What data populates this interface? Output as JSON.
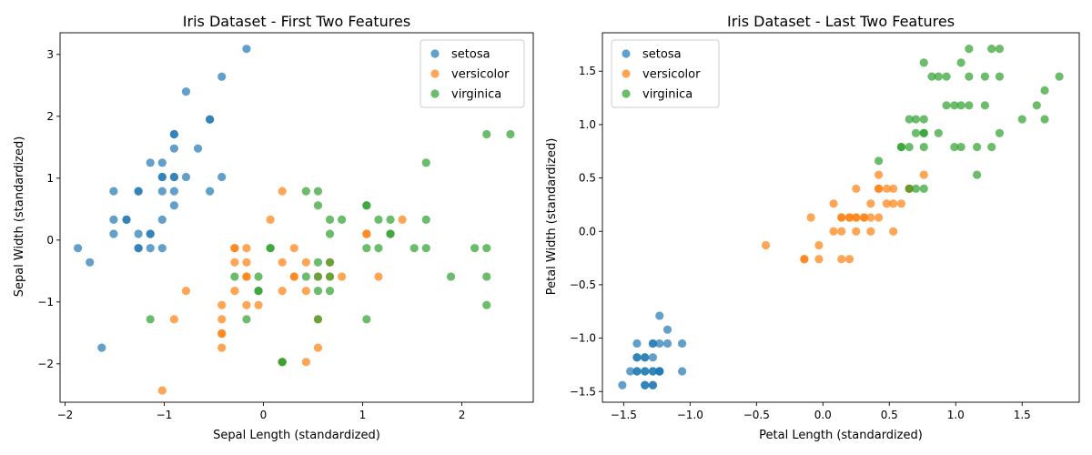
{
  "chart_data": [
    {
      "type": "scatter",
      "title": "Iris Dataset - First Two Features",
      "xlabel": "Sepal Length (standardized)",
      "ylabel": "Sepal Width (standardized)",
      "xlim": [
        -2.05,
        2.72
      ],
      "ylim": [
        -2.62,
        3.35
      ],
      "xticks": [
        -2,
        -1,
        0,
        1,
        2
      ],
      "xtick_labels": [
        "−2",
        "−1",
        "0",
        "1",
        "2"
      ],
      "yticks": [
        -2,
        -1,
        0,
        1,
        2,
        3
      ],
      "ytick_labels": [
        "−2",
        "−1",
        "0",
        "1",
        "2",
        "3"
      ],
      "grid": false,
      "legend_position": "top-right",
      "series": [
        {
          "name": "setosa",
          "color": "#1f77b4",
          "points": [
            [
              -0.17,
              3.09
            ],
            [
              -0.42,
              2.64
            ],
            [
              -0.78,
              2.4
            ],
            [
              -0.54,
              1.95
            ],
            [
              -0.54,
              1.95
            ],
            [
              -0.9,
              1.71
            ],
            [
              -0.9,
              1.71
            ],
            [
              -0.9,
              1.48
            ],
            [
              -0.66,
              1.48
            ],
            [
              -1.14,
              1.25
            ],
            [
              -1.02,
              1.25
            ],
            [
              -1.02,
              1.02
            ],
            [
              -1.02,
              1.02
            ],
            [
              -0.9,
              1.02
            ],
            [
              -0.9,
              1.02
            ],
            [
              -0.78,
              1.02
            ],
            [
              -0.42,
              1.02
            ],
            [
              -1.51,
              0.79
            ],
            [
              -1.26,
              0.79
            ],
            [
              -1.26,
              0.79
            ],
            [
              -1.02,
              0.79
            ],
            [
              -0.9,
              0.79
            ],
            [
              -0.54,
              0.79
            ],
            [
              -0.9,
              0.56
            ],
            [
              -1.51,
              0.33
            ],
            [
              -1.38,
              0.33
            ],
            [
              -1.38,
              0.33
            ],
            [
              -1.02,
              0.33
            ],
            [
              -1.51,
              0.1
            ],
            [
              -1.26,
              0.1
            ],
            [
              -1.14,
              0.1
            ],
            [
              -1.14,
              0.1
            ],
            [
              -1.87,
              -0.13
            ],
            [
              -1.26,
              -0.13
            ],
            [
              -1.26,
              -0.13
            ],
            [
              -1.14,
              -0.13
            ],
            [
              -1.02,
              -0.13
            ],
            [
              -1.75,
              -0.36
            ],
            [
              -1.63,
              -1.74
            ]
          ]
        },
        {
          "name": "versicolor",
          "color": "#ff7f0e",
          "points": [
            [
              0.19,
              0.79
            ],
            [
              0.07,
              0.33
            ],
            [
              1.4,
              0.33
            ],
            [
              1.04,
              0.1
            ],
            [
              1.04,
              0.1
            ],
            [
              -0.29,
              -0.13
            ],
            [
              -0.29,
              -0.13
            ],
            [
              -0.17,
              -0.13
            ],
            [
              0.31,
              -0.13
            ],
            [
              -0.29,
              -0.36
            ],
            [
              -0.17,
              -0.36
            ],
            [
              0.19,
              -0.36
            ],
            [
              0.43,
              -0.36
            ],
            [
              0.67,
              -0.36
            ],
            [
              -0.17,
              -0.59
            ],
            [
              -0.17,
              -0.59
            ],
            [
              0.31,
              -0.59
            ],
            [
              0.31,
              -0.59
            ],
            [
              0.55,
              -0.59
            ],
            [
              0.67,
              -0.59
            ],
            [
              0.79,
              -0.59
            ],
            [
              1.16,
              -0.59
            ],
            [
              -0.29,
              -0.82
            ],
            [
              -0.78,
              -0.82
            ],
            [
              0.19,
              -0.82
            ],
            [
              0.43,
              -0.82
            ],
            [
              -0.42,
              -1.05
            ],
            [
              -0.17,
              -1.05
            ],
            [
              -0.05,
              -1.05
            ],
            [
              -0.42,
              -1.28
            ],
            [
              -0.9,
              -1.28
            ],
            [
              0.55,
              -1.28
            ],
            [
              -0.42,
              -1.51
            ],
            [
              -0.42,
              -1.51
            ],
            [
              -0.42,
              -1.74
            ],
            [
              0.55,
              -1.74
            ],
            [
              0.19,
              -1.97
            ],
            [
              0.43,
              -1.97
            ],
            [
              -1.02,
              -2.43
            ]
          ]
        },
        {
          "name": "virginica",
          "color": "#2ca02c",
          "points": [
            [
              2.25,
              1.71
            ],
            [
              2.49,
              1.71
            ],
            [
              1.64,
              1.25
            ],
            [
              0.43,
              0.79
            ],
            [
              0.55,
              0.79
            ],
            [
              0.55,
              0.56
            ],
            [
              1.04,
              0.56
            ],
            [
              1.04,
              0.56
            ],
            [
              0.67,
              0.33
            ],
            [
              0.79,
              0.33
            ],
            [
              1.16,
              0.33
            ],
            [
              1.28,
              0.33
            ],
            [
              1.64,
              0.33
            ],
            [
              0.67,
              0.1
            ],
            [
              1.28,
              0.1
            ],
            [
              1.28,
              0.1
            ],
            [
              0.07,
              -0.13
            ],
            [
              0.07,
              -0.13
            ],
            [
              1.04,
              -0.13
            ],
            [
              1.16,
              -0.13
            ],
            [
              1.52,
              -0.13
            ],
            [
              1.64,
              -0.13
            ],
            [
              2.13,
              -0.13
            ],
            [
              2.25,
              -0.13
            ],
            [
              0.55,
              -0.36
            ],
            [
              0.67,
              -0.36
            ],
            [
              -0.29,
              -0.59
            ],
            [
              -0.05,
              -0.59
            ],
            [
              0.43,
              -0.59
            ],
            [
              0.55,
              -0.59
            ],
            [
              0.67,
              -0.59
            ],
            [
              1.89,
              -0.59
            ],
            [
              2.25,
              -0.59
            ],
            [
              -0.05,
              -0.82
            ],
            [
              -0.05,
              -0.82
            ],
            [
              0.55,
              -0.82
            ],
            [
              0.67,
              -0.82
            ],
            [
              2.25,
              -1.05
            ],
            [
              -1.14,
              -1.28
            ],
            [
              -0.17,
              -1.28
            ],
            [
              0.55,
              -1.28
            ],
            [
              1.04,
              -1.28
            ],
            [
              0.19,
              -1.97
            ],
            [
              0.19,
              -1.97
            ]
          ]
        }
      ]
    },
    {
      "type": "scatter",
      "title": "Iris Dataset - Last Two Features",
      "xlabel": "Petal Length (standardized)",
      "ylabel": "Petal Width (standardized)",
      "xlim": [
        -1.66,
        1.93
      ],
      "ylim": [
        -1.6,
        1.86
      ],
      "xticks": [
        -1.5,
        -1.0,
        -0.5,
        0.0,
        0.5,
        1.0,
        1.5
      ],
      "xtick_labels": [
        "−1.5",
        "−1.0",
        "−0.5",
        "0.0",
        "0.5",
        "1.0",
        "1.5"
      ],
      "yticks": [
        -1.5,
        -1.0,
        -0.5,
        0.0,
        0.5,
        1.0,
        1.5
      ],
      "ytick_labels": [
        "−1.5",
        "−1.0",
        "−0.5",
        "0.0",
        "0.5",
        "1.0",
        "1.5"
      ],
      "grid": false,
      "legend_position": "top-left",
      "series": [
        {
          "name": "setosa",
          "color": "#1f77b4",
          "points": [
            [
              -1.23,
              -0.79
            ],
            [
              -1.17,
              -0.92
            ],
            [
              -1.4,
              -1.05
            ],
            [
              -1.28,
              -1.05
            ],
            [
              -1.28,
              -1.05
            ],
            [
              -1.23,
              -1.05
            ],
            [
              -1.17,
              -1.05
            ],
            [
              -1.06,
              -1.05
            ],
            [
              -1.4,
              -1.18
            ],
            [
              -1.4,
              -1.18
            ],
            [
              -1.34,
              -1.18
            ],
            [
              -1.34,
              -1.18
            ],
            [
              -1.28,
              -1.18
            ],
            [
              -1.45,
              -1.31
            ],
            [
              -1.4,
              -1.31
            ],
            [
              -1.4,
              -1.31
            ],
            [
              -1.34,
              -1.31
            ],
            [
              -1.34,
              -1.31
            ],
            [
              -1.28,
              -1.31
            ],
            [
              -1.28,
              -1.31
            ],
            [
              -1.23,
              -1.31
            ],
            [
              -1.23,
              -1.31
            ],
            [
              -1.23,
              -1.31
            ],
            [
              -1.06,
              -1.31
            ],
            [
              -1.51,
              -1.44
            ],
            [
              -1.34,
              -1.44
            ],
            [
              -1.34,
              -1.44
            ],
            [
              -1.28,
              -1.44
            ],
            [
              -1.28,
              -1.44
            ]
          ]
        },
        {
          "name": "versicolor",
          "color": "#ff7f0e",
          "points": [
            [
              0.76,
              0.53
            ],
            [
              0.42,
              0.53
            ],
            [
              0.25,
              0.4
            ],
            [
              0.42,
              0.4
            ],
            [
              0.42,
              0.4
            ],
            [
              0.48,
              0.4
            ],
            [
              0.53,
              0.4
            ],
            [
              0.65,
              0.4
            ],
            [
              0.65,
              0.4
            ],
            [
              0.08,
              0.26
            ],
            [
              0.36,
              0.26
            ],
            [
              0.48,
              0.26
            ],
            [
              0.53,
              0.26
            ],
            [
              0.59,
              0.26
            ],
            [
              -0.09,
              0.13
            ],
            [
              0.14,
              0.13
            ],
            [
              0.14,
              0.13
            ],
            [
              0.2,
              0.13
            ],
            [
              0.2,
              0.13
            ],
            [
              0.25,
              0.13
            ],
            [
              0.25,
              0.13
            ],
            [
              0.31,
              0.13
            ],
            [
              0.31,
              0.13
            ],
            [
              0.36,
              0.13
            ],
            [
              0.42,
              0.13
            ],
            [
              0.08,
              0.0
            ],
            [
              0.14,
              0.0
            ],
            [
              0.25,
              0.0
            ],
            [
              0.36,
              0.0
            ],
            [
              0.53,
              0.0
            ],
            [
              -0.43,
              -0.13
            ],
            [
              -0.03,
              -0.13
            ],
            [
              -0.14,
              -0.26
            ],
            [
              -0.14,
              -0.26
            ],
            [
              -0.03,
              -0.26
            ],
            [
              0.14,
              -0.26
            ],
            [
              0.2,
              -0.26
            ]
          ]
        },
        {
          "name": "virginica",
          "color": "#2ca02c",
          "points": [
            [
              1.1,
              1.71
            ],
            [
              1.27,
              1.71
            ],
            [
              1.33,
              1.71
            ],
            [
              0.76,
              1.58
            ],
            [
              1.04,
              1.58
            ],
            [
              0.82,
              1.45
            ],
            [
              0.87,
              1.45
            ],
            [
              0.93,
              1.45
            ],
            [
              1.1,
              1.45
            ],
            [
              1.22,
              1.45
            ],
            [
              1.33,
              1.45
            ],
            [
              1.78,
              1.45
            ],
            [
              1.67,
              1.32
            ],
            [
              0.93,
              1.18
            ],
            [
              0.99,
              1.18
            ],
            [
              1.04,
              1.18
            ],
            [
              1.1,
              1.18
            ],
            [
              1.22,
              1.18
            ],
            [
              1.61,
              1.18
            ],
            [
              0.65,
              1.05
            ],
            [
              0.7,
              1.05
            ],
            [
              0.76,
              1.05
            ],
            [
              1.5,
              1.05
            ],
            [
              1.67,
              1.05
            ],
            [
              0.7,
              0.92
            ],
            [
              0.76,
              0.92
            ],
            [
              0.76,
              0.92
            ],
            [
              0.87,
              0.92
            ],
            [
              1.33,
              0.92
            ],
            [
              0.59,
              0.79
            ],
            [
              0.65,
              0.79
            ],
            [
              0.76,
              0.79
            ],
            [
              0.99,
              0.79
            ],
            [
              1.04,
              0.79
            ],
            [
              1.16,
              0.79
            ],
            [
              1.27,
              0.79
            ],
            [
              0.59,
              0.79
            ],
            [
              0.42,
              0.66
            ],
            [
              1.16,
              0.53
            ],
            [
              0.65,
              0.4
            ],
            [
              0.7,
              0.4
            ],
            [
              0.76,
              0.4
            ]
          ]
        }
      ]
    }
  ]
}
